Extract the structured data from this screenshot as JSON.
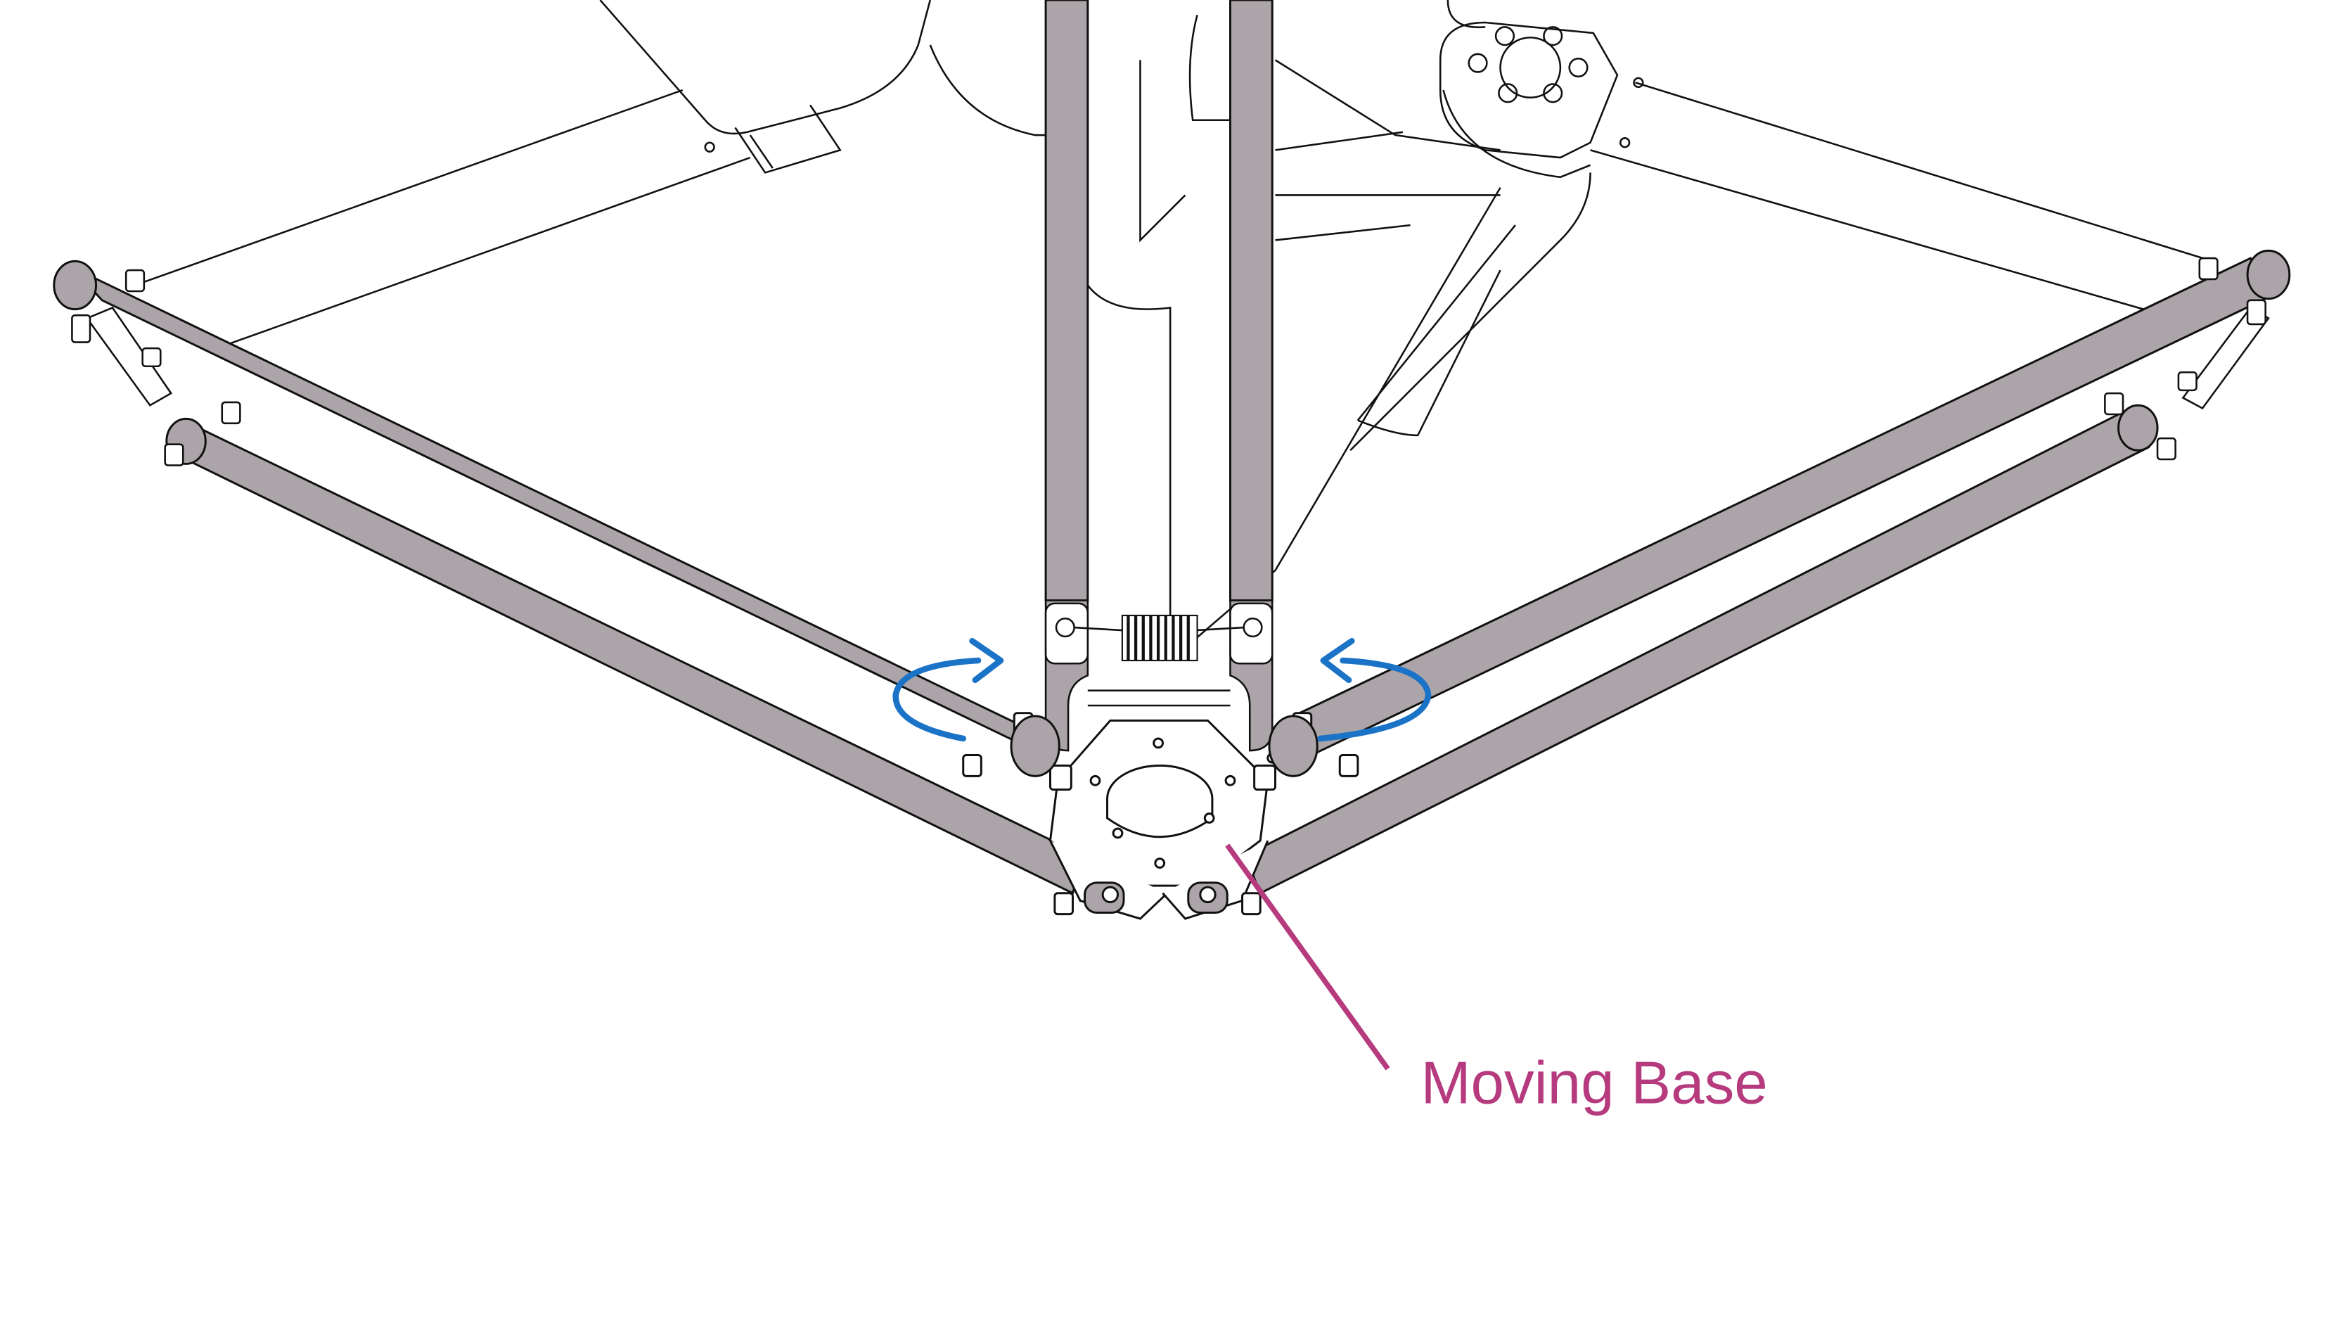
{
  "diagram": {
    "callout_label": "Moving Base"
  },
  "colors": {
    "line": "#111111",
    "rod_fill": "#aba4a8",
    "rotation_arrow": "#1a73c7",
    "callout": "#b63a7e",
    "background": "#ffffff"
  },
  "icons": {
    "left_rotation": "curved-arrow-icon",
    "right_rotation": "curved-arrow-icon"
  }
}
